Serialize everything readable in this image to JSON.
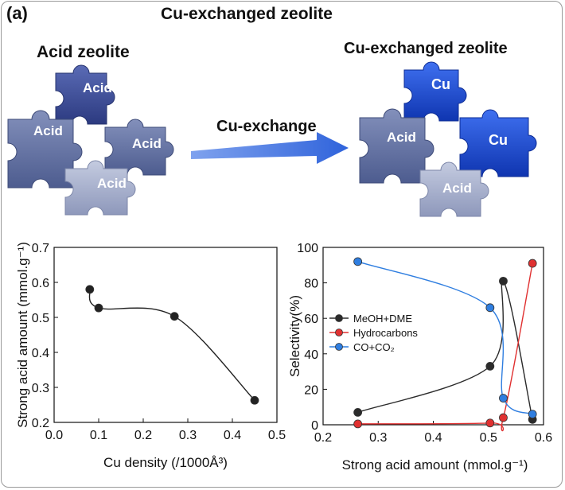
{
  "panel_label": "(a)",
  "figure_title": "Cu-exchanged zeolite",
  "illustration": {
    "left_title": "Acid zeolite",
    "right_title": "Cu-exchanged zeolite",
    "arrow_label": "Cu-exchange",
    "left_pieces": [
      "Acid",
      "Acid",
      "Acid",
      "Acid"
    ],
    "right_pieces": [
      "Cu",
      "Acid",
      "Cu",
      "Acid"
    ],
    "colors": {
      "acid_dark": "#3d4f9a",
      "acid_mid": "#6878a8",
      "acid_light": "#a9b3cf",
      "cu": "#1b4fd6",
      "arrow": "#3f73e0"
    }
  },
  "chart_data": [
    {
      "type": "line",
      "xlabel": "Cu density (/1000Å³)",
      "ylabel": "Strong acid amount (mmol.g⁻¹)",
      "xlim": [
        0.0,
        0.5
      ],
      "ylim": [
        0.2,
        0.7
      ],
      "xticks": [
        "0.0",
        "0.1",
        "0.2",
        "0.3",
        "0.4",
        "0.5"
      ],
      "yticks": [
        "0.2",
        "0.3",
        "0.4",
        "0.5",
        "0.6",
        "0.7"
      ],
      "series": [
        {
          "color": "#222222",
          "x": [
            0.08,
            0.1,
            0.27,
            0.45
          ],
          "y": [
            0.58,
            0.527,
            0.503,
            0.263
          ]
        }
      ]
    },
    {
      "type": "line",
      "xlabel": "Strong acid amount (mmol.g⁻¹)",
      "ylabel": "Selectivity(%)",
      "xlim": [
        0.2,
        0.6
      ],
      "ylim": [
        0,
        100
      ],
      "xticks": [
        "0.2",
        "0.3",
        "0.4",
        "0.5",
        "0.6"
      ],
      "yticks": [
        "0",
        "20",
        "40",
        "60",
        "80",
        "100"
      ],
      "legend_position": "middle-left",
      "series": [
        {
          "name": "MeOH+DME",
          "color": "#2b2b2b",
          "x": [
            0.263,
            0.503,
            0.527,
            0.58
          ],
          "y": [
            7,
            33,
            81,
            3
          ]
        },
        {
          "name": "Hydrocarbons",
          "color": "#e03030",
          "x": [
            0.263,
            0.503,
            0.527,
            0.58
          ],
          "y": [
            0.5,
            1,
            4,
            91
          ]
        },
        {
          "name": "CO+CO₂",
          "color": "#2f7ee0",
          "x": [
            0.263,
            0.503,
            0.527,
            0.58
          ],
          "y": [
            92,
            66,
            15,
            6
          ]
        }
      ]
    }
  ]
}
